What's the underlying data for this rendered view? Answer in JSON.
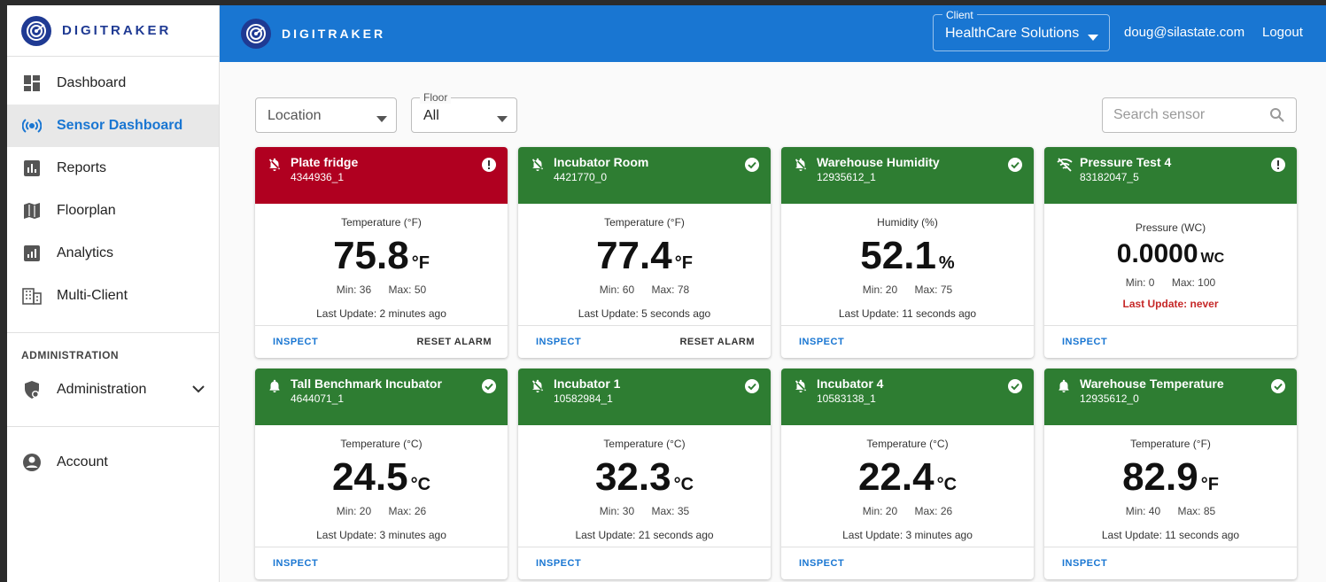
{
  "brand": {
    "name": "DIGITRAKER"
  },
  "colors": {
    "primary": "#1976d2",
    "alarm": "#b00020",
    "ok": "#2e7d32",
    "brand": "#1f3a93"
  },
  "sidebar": {
    "items": [
      {
        "label": "Dashboard",
        "icon": "dashboard-icon"
      },
      {
        "label": "Sensor Dashboard",
        "icon": "sensors-icon",
        "active": true
      },
      {
        "label": "Reports",
        "icon": "bar-chart-icon"
      },
      {
        "label": "Floorplan",
        "icon": "map-icon"
      },
      {
        "label": "Analytics",
        "icon": "analytics-icon"
      },
      {
        "label": "Multi-Client",
        "icon": "building-icon"
      }
    ],
    "section_label": "ADMINISTRATION",
    "admin_label": "Administration",
    "account_label": "Account"
  },
  "header": {
    "client_label": "Client",
    "client_value": "HealthCare Solutions",
    "user_email": "doug@silastate.com",
    "logout_label": "Logout"
  },
  "filters": {
    "location_placeholder": "Location",
    "floor_label": "Floor",
    "floor_value": "All",
    "search_placeholder": "Search sensor"
  },
  "actions": {
    "inspect": "INSPECT",
    "reset": "RESET ALARM"
  },
  "cards": [
    {
      "name": "Plate fridge",
      "id": "4344936_1",
      "color": "red",
      "bell": "off",
      "status": "alert",
      "metric": "Temperature (°F)",
      "value": "75.8",
      "unit": "°F",
      "min": "Min: 36",
      "max": "Max: 50",
      "last": "Last Update: 2 minutes ago",
      "reset": true
    },
    {
      "name": "Incubator Room",
      "id": "4421770_0",
      "color": "green",
      "bell": "off",
      "status": "ok",
      "metric": "Temperature (°F)",
      "value": "77.4",
      "unit": "°F",
      "min": "Min: 60",
      "max": "Max: 78",
      "last": "Last Update: 5 seconds ago",
      "reset": true
    },
    {
      "name": "Warehouse Humidity",
      "id": "12935612_1",
      "color": "green",
      "bell": "off",
      "status": "ok",
      "metric": "Humidity (%)",
      "value": "52.1",
      "unit": "%",
      "min": "Min: 20",
      "max": "Max: 75",
      "last": "Last Update: 11 seconds ago",
      "reset": false
    },
    {
      "name": "Pressure Test 4",
      "id": "83182047_5",
      "color": "green",
      "bell": "wifi-off",
      "status": "alert",
      "metric": "Pressure (WC)",
      "value": "0.0000",
      "unit": "WC",
      "min": "Min: 0",
      "max": "Max: 100",
      "last": "Last Update: never",
      "reset": false,
      "pressure": true
    },
    {
      "name": "Tall Benchmark Incubator",
      "id": "4644071_1",
      "color": "green",
      "bell": "on",
      "status": "ok",
      "metric": "Temperature (°C)",
      "value": "24.5",
      "unit": "°C",
      "min": "Min: 20",
      "max": "Max: 26",
      "last": "Last Update: 3 minutes ago",
      "reset": false
    },
    {
      "name": "Incubator 1",
      "id": "10582984_1",
      "color": "green",
      "bell": "off",
      "status": "ok",
      "metric": "Temperature (°C)",
      "value": "32.3",
      "unit": "°C",
      "min": "Min: 30",
      "max": "Max: 35",
      "last": "Last Update: 21 seconds ago",
      "reset": false
    },
    {
      "name": "Incubator 4",
      "id": "10583138_1",
      "color": "green",
      "bell": "off",
      "status": "ok",
      "metric": "Temperature (°C)",
      "value": "22.4",
      "unit": "°C",
      "min": "Min: 20",
      "max": "Max: 26",
      "last": "Last Update: 3 minutes ago",
      "reset": false
    },
    {
      "name": "Warehouse Temperature",
      "id": "12935612_0",
      "color": "green",
      "bell": "on",
      "status": "ok",
      "metric": "Temperature (°F)",
      "value": "82.9",
      "unit": "°F",
      "min": "Min: 40",
      "max": "Max: 85",
      "last": "Last Update: 11 seconds ago",
      "reset": false
    }
  ]
}
